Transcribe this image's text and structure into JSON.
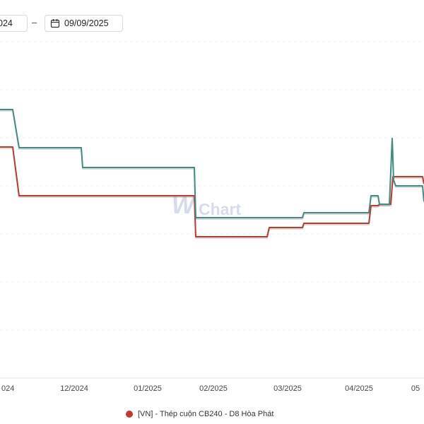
{
  "toolbar": {
    "start_date": "024",
    "separator": "–",
    "end_date": "09/09/2025"
  },
  "watermark": {
    "text": "Chart"
  },
  "chart_data": {
    "type": "line",
    "x_tick_labels": [
      "024",
      "12/2024",
      "01/2025",
      "02/2025",
      "03/2025",
      "04/2025",
      "05"
    ],
    "colors": {
      "series_red": "#c0392b",
      "series_green": "#3f8c84"
    },
    "grid": true,
    "legend": {
      "position": "bottom",
      "entries": [
        "[VN] - Thép cuộn CB240 - D8 Hòa Phát"
      ]
    },
    "series": [
      {
        "name": "[VN] - Thép cuộn CB240 - D8 Hòa Phát",
        "color": "#c0392b",
        "points": [
          [
            0,
            208
          ],
          [
            18,
            208
          ],
          [
            27,
            277
          ],
          [
            275,
            277
          ],
          [
            277,
            335
          ],
          [
            378,
            335
          ],
          [
            381,
            322
          ],
          [
            428,
            322
          ],
          [
            430,
            316
          ],
          [
            522,
            316
          ],
          [
            525,
            291
          ],
          [
            535,
            291
          ],
          [
            537,
            289
          ],
          [
            553,
            289
          ],
          [
            556,
            250
          ],
          [
            598,
            250
          ],
          [
            600,
            260
          ]
        ]
      },
      {
        "color": "#3f8c84",
        "points": [
          [
            0,
            155
          ],
          [
            18,
            155
          ],
          [
            27,
            209
          ],
          [
            115,
            209
          ],
          [
            117,
            237
          ],
          [
            275,
            237
          ],
          [
            277,
            308
          ],
          [
            428,
            308
          ],
          [
            430,
            301
          ],
          [
            522,
            301
          ],
          [
            525,
            277
          ],
          [
            535,
            277
          ],
          [
            537,
            289
          ],
          [
            551,
            289
          ],
          [
            555,
            196
          ],
          [
            557,
            255
          ],
          [
            560,
            263
          ],
          [
            598,
            263
          ],
          [
            600,
            285
          ]
        ]
      }
    ]
  }
}
